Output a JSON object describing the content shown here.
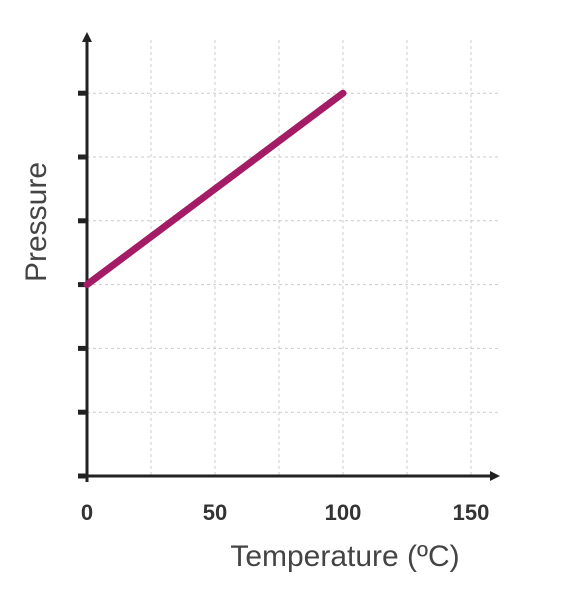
{
  "chart_data": {
    "type": "line",
    "xlabel": "Temperature (ºC)",
    "ylabel": "Pressure",
    "xlim": [
      0,
      160
    ],
    "x_ticks": [
      0,
      50,
      100,
      150
    ],
    "x_tick_labels": [
      "0",
      "50",
      "100",
      "150"
    ],
    "y_tick_count": 6,
    "grid": true,
    "series": [
      {
        "x": [
          0,
          100
        ],
        "y": [
          3,
          6
        ]
      }
    ],
    "ylim": [
      0,
      6.35
    ],
    "colors": {
      "line": "#a51c66",
      "axis": "#222222",
      "grid": "#cccccc"
    }
  }
}
